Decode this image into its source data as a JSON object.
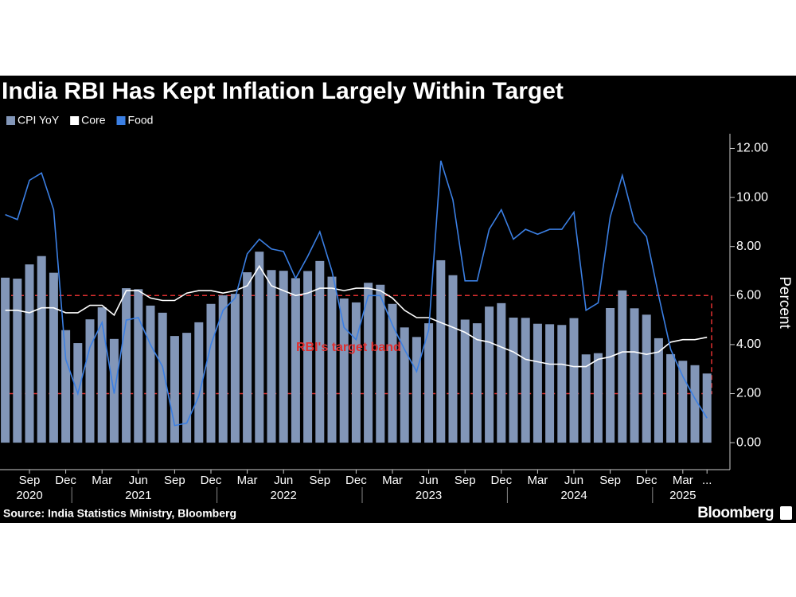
{
  "chart_data": {
    "type": "bar",
    "title": "India RBI Has Kept Inflation Largely Within Target",
    "y_axis_label": "Percent",
    "source": "Source: India Statistics Ministry, Bloomberg",
    "brand": "Bloomberg",
    "categories": [
      null,
      null,
      "Sep",
      null,
      null,
      "Dec",
      null,
      null,
      "Mar",
      null,
      null,
      "Jun",
      null,
      null,
      "Sep",
      null,
      null,
      "Dec",
      null,
      null,
      "Mar",
      null,
      null,
      "Jun",
      null,
      null,
      "Sep",
      null,
      null,
      "Dec",
      null,
      null,
      "Mar",
      null,
      null,
      "Jun",
      null,
      null,
      "Sep",
      null,
      null,
      "Dec",
      null,
      null,
      "Mar",
      null,
      null,
      "Jun",
      null,
      null,
      "Sep",
      null,
      null,
      "Dec",
      null,
      null,
      "Mar",
      null,
      "..."
    ],
    "year_labels": [
      null,
      null,
      "2020",
      null,
      null,
      null,
      null,
      null,
      null,
      null,
      null,
      "2021",
      null,
      null,
      null,
      null,
      null,
      null,
      null,
      null,
      null,
      null,
      null,
      "2022",
      null,
      null,
      null,
      null,
      null,
      null,
      null,
      null,
      null,
      null,
      null,
      "2023",
      null,
      null,
      null,
      null,
      null,
      null,
      null,
      null,
      null,
      null,
      null,
      "2024",
      null,
      null,
      null,
      null,
      null,
      null,
      null,
      null,
      "2025",
      null,
      null
    ],
    "series": [
      {
        "name": "CPI YoY",
        "type": "bar",
        "color": "#8296b8",
        "values": [
          6.73,
          6.69,
          7.27,
          7.61,
          6.93,
          4.59,
          4.06,
          5.03,
          5.52,
          4.23,
          6.3,
          6.26,
          5.59,
          5.3,
          4.35,
          4.48,
          4.91,
          5.66,
          6.01,
          6.07,
          6.95,
          7.79,
          7.04,
          7.01,
          6.71,
          7.0,
          7.41,
          6.77,
          5.88,
          5.72,
          6.52,
          6.44,
          5.66,
          4.7,
          4.31,
          4.87,
          7.44,
          6.83,
          5.02,
          4.87,
          5.55,
          5.69,
          5.1,
          5.09,
          4.85,
          4.83,
          4.8,
          5.08,
          3.6,
          3.65,
          5.49,
          6.21,
          5.48,
          5.22,
          4.26,
          3.61,
          3.34,
          3.16,
          2.82
        ]
      },
      {
        "name": "Core",
        "type": "line",
        "color": "#ffffff",
        "values": [
          5.4,
          5.4,
          5.3,
          5.5,
          5.5,
          5.3,
          5.3,
          5.6,
          5.6,
          5.2,
          6.2,
          6.2,
          5.9,
          5.8,
          5.8,
          6.1,
          6.2,
          6.2,
          6.1,
          6.2,
          6.4,
          7.2,
          6.4,
          6.2,
          6.0,
          6.1,
          6.3,
          6.3,
          6.2,
          6.3,
          6.3,
          6.2,
          5.9,
          5.4,
          5.1,
          5.1,
          4.9,
          4.7,
          4.5,
          4.2,
          4.1,
          3.9,
          3.7,
          3.4,
          3.3,
          3.2,
          3.2,
          3.1,
          3.1,
          3.4,
          3.5,
          3.7,
          3.7,
          3.6,
          3.7,
          4.1,
          4.2,
          4.2,
          4.3
        ]
      },
      {
        "name": "Food",
        "type": "line",
        "color": "#3b7fe3",
        "values": [
          9.3,
          9.1,
          10.7,
          11.0,
          9.5,
          3.4,
          2.0,
          3.9,
          4.9,
          2.0,
          5.0,
          5.1,
          4.0,
          3.1,
          0.7,
          0.8,
          1.9,
          4.0,
          5.4,
          5.9,
          7.7,
          8.3,
          7.9,
          7.8,
          6.7,
          7.6,
          8.6,
          7.0,
          4.7,
          4.2,
          6.0,
          6.0,
          4.8,
          3.8,
          2.9,
          4.6,
          11.5,
          9.9,
          6.6,
          6.6,
          8.7,
          9.5,
          8.3,
          8.7,
          8.5,
          8.7,
          8.7,
          9.4,
          5.4,
          5.7,
          9.2,
          10.9,
          9.0,
          8.4,
          6.0,
          3.8,
          2.7,
          1.8,
          1.0
        ]
      }
    ],
    "target_band": {
      "low": 2,
      "high": 6,
      "label": "RBI's target band",
      "color": "#e03030"
    },
    "ylim": [
      -1.1,
      12.6
    ],
    "yticks": [
      {
        "value": 0,
        "label": "0.00"
      },
      {
        "value": 2,
        "label": "2.00"
      },
      {
        "value": 4,
        "label": "4.00"
      },
      {
        "value": 6,
        "label": "6.00"
      },
      {
        "value": 8,
        "label": "8.00"
      },
      {
        "value": 10,
        "label": "10.00"
      },
      {
        "value": 12,
        "label": "12.00"
      }
    ],
    "grid": false
  }
}
